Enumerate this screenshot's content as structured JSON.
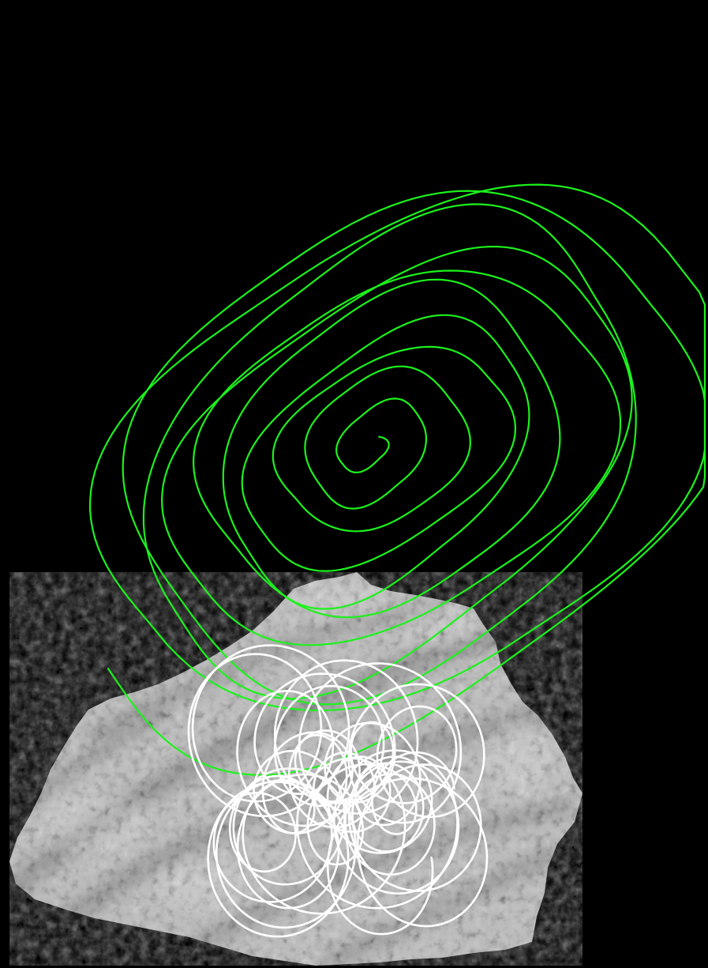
{
  "scene": {
    "background_color": "#000000",
    "rock": {
      "base_color": "#9a9a9a",
      "light_color": "#d6d6d6",
      "dark_color": "#3a3a3a",
      "stripe_color": "#2e2e2e"
    },
    "green_spiral": {
      "stroke_color": "#1cf21c"
    },
    "white_scribble": {
      "stroke_color": "#ffffff"
    }
  }
}
